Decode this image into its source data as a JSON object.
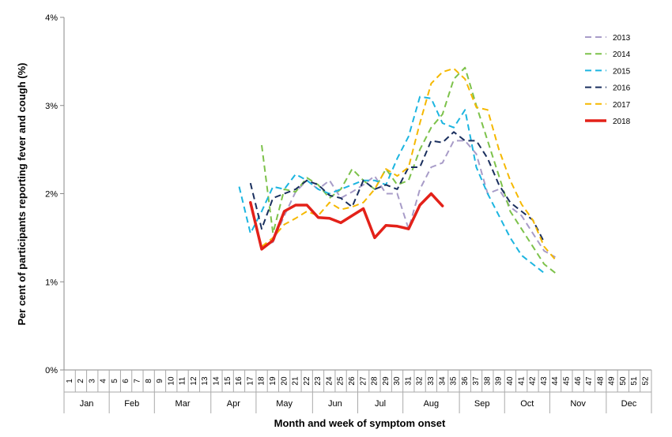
{
  "chart_data": {
    "type": "line",
    "xlabel": "Month and week of symptom onset",
    "ylabel": "Per cent of participants reporting fever and cough (%)",
    "ylim": [
      0,
      4
    ],
    "yticks": [
      "0%",
      "1%",
      "2%",
      "3%",
      "4%"
    ],
    "weeks": [
      "1",
      "2",
      "3",
      "4",
      "5",
      "6",
      "7",
      "8",
      "9",
      "10",
      "11",
      "12",
      "13",
      "14",
      "15",
      "16",
      "17",
      "18",
      "19",
      "20",
      "21",
      "22",
      "23",
      "24",
      "25",
      "26",
      "27",
      "28",
      "29",
      "30",
      "31",
      "32",
      "33",
      "34",
      "35",
      "36",
      "37",
      "38",
      "39",
      "40",
      "41",
      "42",
      "43",
      "44",
      "45",
      "46",
      "47",
      "48",
      "49",
      "50",
      "51",
      "52"
    ],
    "months": [
      {
        "label": "Jan",
        "start_week": 1,
        "end_week": 4
      },
      {
        "label": "Feb",
        "start_week": 5,
        "end_week": 8
      },
      {
        "label": "Mar",
        "start_week": 9,
        "end_week": 13
      },
      {
        "label": "Apr",
        "start_week": 14,
        "end_week": 17
      },
      {
        "label": "May",
        "start_week": 18,
        "end_week": 22
      },
      {
        "label": "Jun",
        "start_week": 23,
        "end_week": 26
      },
      {
        "label": "Jul",
        "start_week": 27,
        "end_week": 30
      },
      {
        "label": "Aug",
        "start_week": 31,
        "end_week": 35
      },
      {
        "label": "Sep",
        "start_week": 36,
        "end_week": 39
      },
      {
        "label": "Oct",
        "start_week": 40,
        "end_week": 43
      },
      {
        "label": "Nov",
        "start_week": 44,
        "end_week": 48
      },
      {
        "label": "Dec",
        "start_week": 49,
        "end_week": 52
      }
    ],
    "grid": false,
    "legend_position": "top-right",
    "series": [
      {
        "name": "2013",
        "color": "#a89cc8",
        "dash": true,
        "x_start": 18,
        "values": [
          1.4,
          1.45,
          1.75,
          2.02,
          2.15,
          2.05,
          2.15,
          1.95,
          2.02,
          2.1,
          2.2,
          2.0,
          2.0,
          1.6,
          2.05,
          2.3,
          2.35,
          2.6,
          2.6,
          2.45,
          2.0,
          2.05,
          1.85,
          1.75,
          1.55,
          1.35,
          1.28
        ]
      },
      {
        "name": "2014",
        "color": "#7dc24b",
        "dash": true,
        "x_start": 18,
        "values": [
          2.55,
          1.55,
          2.05,
          2.02,
          2.18,
          2.1,
          1.95,
          2.05,
          2.28,
          2.15,
          2.05,
          2.28,
          2.1,
          2.15,
          2.5,
          2.75,
          2.9,
          3.3,
          3.43,
          3.0,
          2.6,
          2.2,
          1.8,
          1.6,
          1.4,
          1.2,
          1.1
        ]
      },
      {
        "name": "2015",
        "color": "#1cb5e0",
        "dash": true,
        "x_start": 16,
        "values": [
          2.08,
          1.55,
          1.8,
          2.08,
          2.05,
          2.22,
          2.15,
          2.05,
          2.0,
          2.05,
          2.1,
          2.15,
          2.15,
          2.1,
          2.4,
          2.65,
          3.1,
          3.08,
          2.8,
          2.75,
          2.95,
          2.3,
          2.0,
          1.75,
          1.5,
          1.3,
          1.2,
          1.1
        ]
      },
      {
        "name": "2016",
        "color": "#1a2f5e",
        "dash": true,
        "x_start": 17,
        "values": [
          2.12,
          1.6,
          1.95,
          2.0,
          2.05,
          2.15,
          2.1,
          1.98,
          1.95,
          1.85,
          2.15,
          2.05,
          2.1,
          2.05,
          2.3,
          2.3,
          2.6,
          2.58,
          2.7,
          2.6,
          2.6,
          2.4,
          2.1,
          1.9,
          1.8,
          1.7,
          1.45
        ]
      },
      {
        "name": "2017",
        "color": "#f5b800",
        "dash": true,
        "x_start": 18,
        "values": [
          1.4,
          1.5,
          1.65,
          1.72,
          1.8,
          1.75,
          1.9,
          1.82,
          1.85,
          1.9,
          2.05,
          2.28,
          2.2,
          2.3,
          2.8,
          3.25,
          3.38,
          3.42,
          3.3,
          2.98,
          2.95,
          2.5,
          2.15,
          1.88,
          1.7,
          1.4,
          1.25
        ]
      },
      {
        "name": "2018",
        "color": "#e32119",
        "dash": false,
        "x_start": 17,
        "values": [
          1.9,
          1.37,
          1.47,
          1.8,
          1.87,
          1.87,
          1.73,
          1.72,
          1.67,
          1.75,
          1.83,
          1.5,
          1.64,
          1.63,
          1.6,
          1.87,
          2.0,
          1.86
        ]
      }
    ]
  }
}
